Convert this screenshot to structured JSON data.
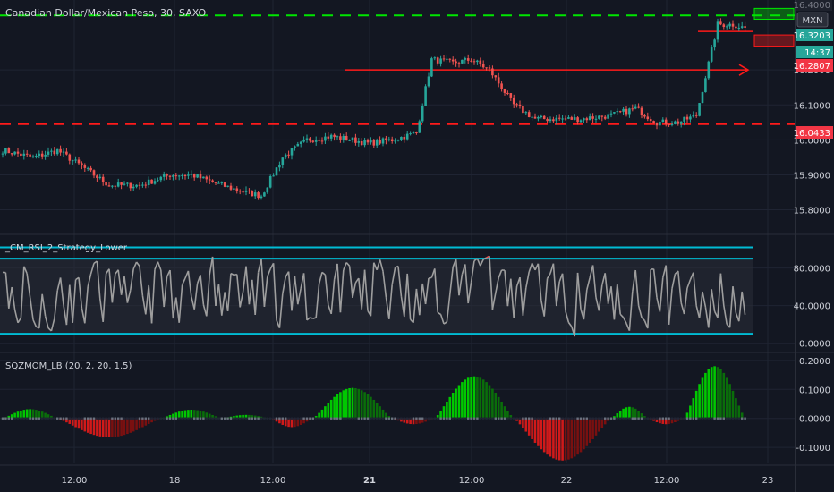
{
  "header": {
    "symbol_title": "Canadian Dollar/Mexican Peso, 30, SAXO",
    "currency": "MXN"
  },
  "colors": {
    "background": "#131722",
    "grid": "#1f2433",
    "up": "#26a69a",
    "down": "#ef5350",
    "green_dash": "#00e600",
    "red_dash": "#ff1a1a",
    "rsi_band": "#00bcd4",
    "rsi_line": "#9e9e9e",
    "mom_up_strong": "#00c800",
    "mom_up_weak": "#0a6e0a",
    "mom_down_strong": "#d01a1a",
    "mom_down_weak": "#7a1010",
    "text": "#d1d4dc"
  },
  "price_badges": {
    "top_partial": "16.4000",
    "current": "16.3203",
    "countdown": "14:37",
    "red_level": "16.2807",
    "lower_level": "16.0433"
  },
  "chart_data": [
    {
      "type": "candlestick",
      "name": "price",
      "title": "Canadian Dollar/Mexican Peso, 30, SAXO",
      "ylim": [
        15.74,
        16.4
      ],
      "y_ticks": [
        "16.2000",
        "16.1000",
        "16.0000",
        "15.9000",
        "15.8000"
      ],
      "y_tick_values": [
        16.2,
        16.1,
        16.0,
        15.9,
        15.8
      ],
      "x_ticks": [
        "12:00",
        "18",
        "12:00",
        "21",
        "12:00",
        "22",
        "12:00",
        "23"
      ],
      "horizontal_levels": [
        {
          "value": 16.356,
          "style": "green-dashed"
        },
        {
          "value": 16.045,
          "style": "red-dashed"
        },
        {
          "value": 16.2,
          "style": "red-arrow"
        },
        {
          "value": 16.31,
          "style": "red-short"
        }
      ],
      "boxes": [
        {
          "from": 16.376,
          "to": 16.345,
          "color": "green"
        },
        {
          "from": 16.3,
          "to": 16.268,
          "color": "red"
        }
      ],
      "anchors": [
        [
          0,
          15.97
        ],
        [
          10,
          15.95
        ],
        [
          18,
          15.97
        ],
        [
          25,
          15.93
        ],
        [
          35,
          15.87
        ],
        [
          45,
          15.87
        ],
        [
          55,
          15.9
        ],
        [
          62,
          15.9
        ],
        [
          72,
          15.87
        ],
        [
          80,
          15.85
        ],
        [
          85,
          15.84
        ],
        [
          92,
          15.95
        ],
        [
          100,
          16.0
        ],
        [
          108,
          16.01
        ],
        [
          115,
          16.0
        ],
        [
          120,
          15.99
        ],
        [
          128,
          16.0
        ],
        [
          136,
          16.02
        ],
        [
          141,
          16.23
        ],
        [
          148,
          16.22
        ],
        [
          154,
          16.23
        ],
        [
          160,
          16.2
        ],
        [
          168,
          16.1
        ],
        [
          175,
          16.06
        ],
        [
          182,
          16.06
        ],
        [
          190,
          16.06
        ],
        [
          200,
          16.07
        ],
        [
          208,
          16.09
        ],
        [
          215,
          16.05
        ],
        [
          222,
          16.05
        ],
        [
          228,
          16.07
        ],
        [
          235,
          16.33
        ],
        [
          240,
          16.33
        ],
        [
          244,
          16.32
        ]
      ]
    },
    {
      "type": "line",
      "name": "rsi",
      "title": "_CM_RSI_2_Strategy_Lower",
      "ylim": [
        -6,
        112
      ],
      "y_ticks": [
        "80.0000",
        "40.0000",
        "0.0000"
      ],
      "y_tick_values": [
        80,
        40,
        0
      ],
      "bands": [
        10,
        90,
        102
      ],
      "bands_note": "cyan horizontal band lines"
    },
    {
      "type": "bar",
      "name": "momentum",
      "title": "SQZMOM_LB (20, 2, 20, 1.5)",
      "ylim": [
        -0.155,
        0.215
      ],
      "y_ticks": [
        "0.2000",
        "0.1000",
        "0.0000",
        "-0.1000"
      ],
      "y_tick_values": [
        0.2,
        0.1,
        0.0,
        -0.1
      ],
      "cycles": [
        {
          "from": 0,
          "to": 18,
          "peak": 0.032
        },
        {
          "from": 18,
          "to": 52,
          "peak": -0.065
        },
        {
          "from": 52,
          "to": 72,
          "peak": 0.03
        },
        {
          "from": 72,
          "to": 88,
          "peak": 0.012
        },
        {
          "from": 88,
          "to": 102,
          "peak": -0.03
        },
        {
          "from": 102,
          "to": 128,
          "peak": 0.105
        },
        {
          "from": 128,
          "to": 142,
          "peak": -0.02
        },
        {
          "from": 142,
          "to": 168,
          "peak": 0.145
        },
        {
          "from": 168,
          "to": 200,
          "peak": -0.145
        },
        {
          "from": 200,
          "to": 212,
          "peak": 0.04
        },
        {
          "from": 212,
          "to": 224,
          "peak": -0.02
        },
        {
          "from": 224,
          "to": 244,
          "peak": 0.18
        }
      ]
    }
  ]
}
